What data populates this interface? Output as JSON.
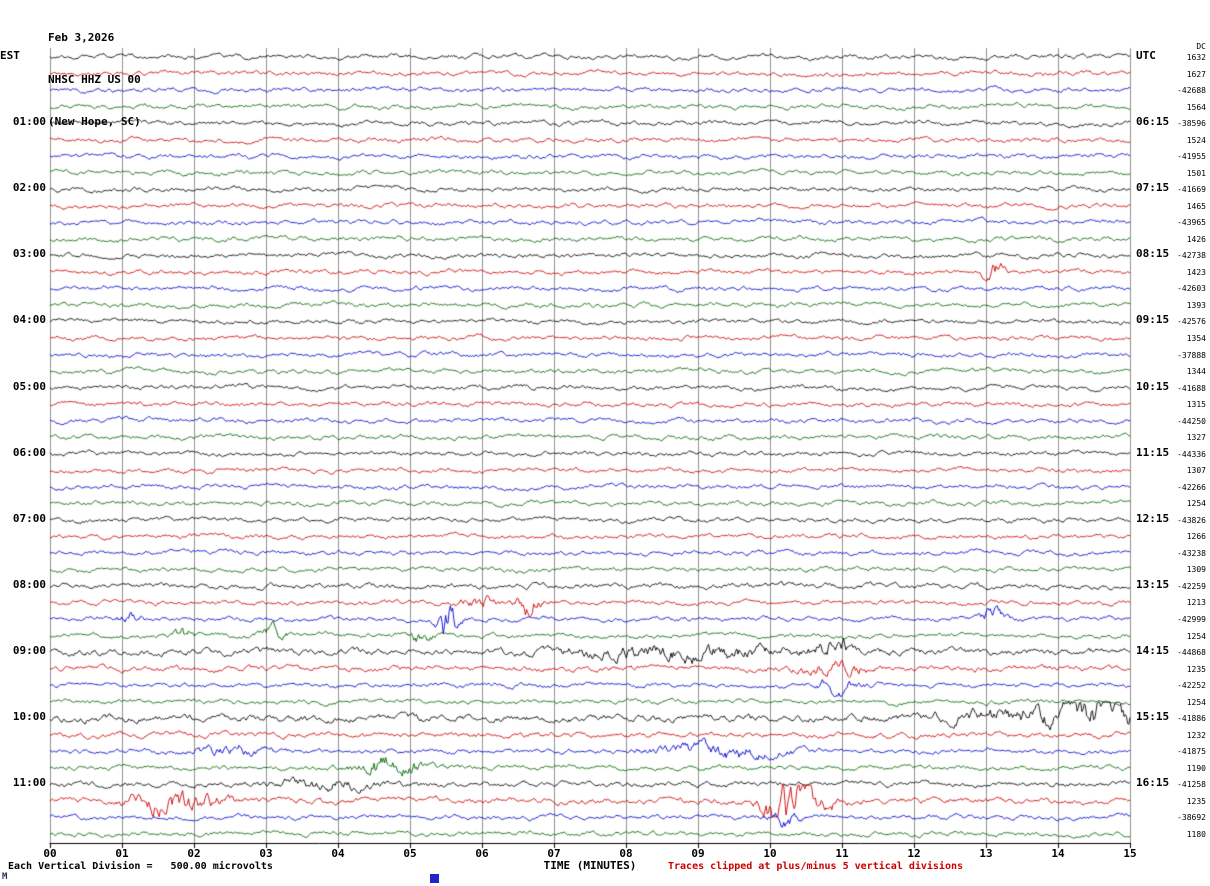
{
  "header": {
    "date": "Feb 3,2026",
    "station": "NHSC HHZ US 00",
    "location": "(New Hope, SC)"
  },
  "axis": {
    "x_title": "TIME (MINUTES)",
    "x_ticks": [
      "00",
      "01",
      "02",
      "03",
      "04",
      "05",
      "06",
      "07",
      "08",
      "09",
      "10",
      "11",
      "12",
      "13",
      "14",
      "15"
    ],
    "dc_header": "DC"
  },
  "footer": {
    "scale_note": "Each Vertical Division =   500.00 microvolts",
    "clip_note": "Traces clipped at plus/minus 5 vertical divisions",
    "corner_mark": "M"
  },
  "chart_data": {
    "type": "line",
    "variant": "seismogram_helicorder",
    "x_range_minutes": [
      0,
      15
    ],
    "minutes_per_row": 15,
    "rows_per_hour": 4,
    "num_rows": 48,
    "grid": "vertical_lines_every_minute",
    "trace_colors": [
      "#000000",
      "#cc0000",
      "#0000cc",
      "#006600"
    ],
    "left_labels": [
      "EST",
      "01:00",
      "02:00",
      "03:00",
      "04:00",
      "05:00",
      "06:00",
      "07:00",
      "08:00",
      "09:00",
      "10:00",
      "11:00"
    ],
    "right_labels": [
      "UTC",
      "06:15",
      "07:15",
      "08:15",
      "09:15",
      "10:15",
      "11:15",
      "12:15",
      "13:15",
      "14:15",
      "15:15",
      "16:15"
    ],
    "dc_values": [
      1632,
      1627,
      -42688,
      1564,
      -38596,
      1524,
      -41955,
      1501,
      -41669,
      1465,
      -43965,
      1426,
      -42738,
      1423,
      -42603,
      1393,
      -42576,
      1354,
      -37888,
      1344,
      -41688,
      1315,
      -44250,
      1327,
      -44336,
      1307,
      -42266,
      1254,
      -43826,
      1266,
      -43238,
      1309,
      -42259,
      1213,
      -42999,
      1254,
      -44868,
      1235,
      -42252,
      1254,
      -41886,
      1232,
      -41875,
      1190,
      -41258,
      1235,
      -38692,
      1180
    ],
    "microvolts_per_division": 500.0,
    "clip_divisions": 5,
    "amp_overrides": {
      "32": 1.2,
      "36": 1.5,
      "37": 1.25,
      "40": 1.6,
      "41": 1.2,
      "44": 1.2,
      "45": 1.3
    },
    "events": [
      {
        "row": 13,
        "minute": 13.1,
        "amp": 4,
        "width": 0.1
      },
      {
        "row": 33,
        "minute": 5.95,
        "amp": 3,
        "width": 0.15
      },
      {
        "row": 33,
        "minute": 6.65,
        "amp": 5,
        "width": 0.12
      },
      {
        "row": 34,
        "minute": 1.1,
        "amp": 3,
        "width": 0.1
      },
      {
        "row": 34,
        "minute": 5.52,
        "amp": 10,
        "width": 0.1
      },
      {
        "row": 34,
        "minute": 13.05,
        "amp": 5,
        "width": 0.12
      },
      {
        "row": 35,
        "minute": 1.85,
        "amp": 3,
        "width": 0.1
      },
      {
        "row": 35,
        "minute": 3.1,
        "amp": 3.5,
        "width": 0.12
      },
      {
        "row": 35,
        "minute": 5.15,
        "amp": 3,
        "width": 0.1
      },
      {
        "row": 36,
        "minute": 8.2,
        "amp": 2.2,
        "width": 0.8
      },
      {
        "row": 36,
        "minute": 9.4,
        "amp": 2.0,
        "width": 0.5
      },
      {
        "row": 36,
        "minute": 10.9,
        "amp": 4.5,
        "width": 0.25
      },
      {
        "row": 37,
        "minute": 10.9,
        "amp": 3,
        "width": 0.3
      },
      {
        "row": 38,
        "minute": 10.95,
        "amp": 2.5,
        "width": 0.2
      },
      {
        "row": 40,
        "minute": 13.9,
        "amp": 3.5,
        "width": 0.9
      },
      {
        "row": 40,
        "minute": 14.6,
        "amp": 3.5,
        "width": 0.35
      },
      {
        "row": 42,
        "minute": 2.5,
        "amp": 2,
        "width": 0.4
      },
      {
        "row": 42,
        "minute": 9.35,
        "amp": 3,
        "width": 0.6
      },
      {
        "row": 43,
        "minute": 4.55,
        "amp": 4,
        "width": 0.25
      },
      {
        "row": 43,
        "minute": 5.05,
        "amp": 2,
        "width": 0.3
      },
      {
        "row": 44,
        "minute": 3.8,
        "amp": 2,
        "width": 0.5
      },
      {
        "row": 45,
        "minute": 1.55,
        "amp": 4,
        "width": 0.3
      },
      {
        "row": 45,
        "minute": 2.05,
        "amp": 2.5,
        "width": 0.3
      },
      {
        "row": 45,
        "minute": 10.15,
        "amp": 14,
        "width": 0.15
      },
      {
        "row": 45,
        "minute": 10.5,
        "amp": 6,
        "width": 0.25
      },
      {
        "row": 46,
        "minute": 10.2,
        "amp": 3,
        "width": 0.15
      }
    ]
  }
}
